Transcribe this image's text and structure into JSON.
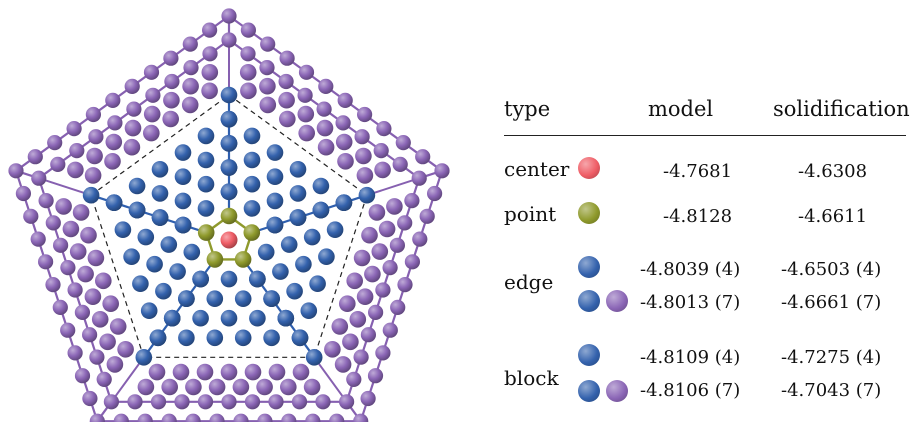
{
  "colors": {
    "center": "#ef5d66",
    "point": "#8f9a2c",
    "edge": "#3462ad",
    "outer": "#8b66b6",
    "pentagon_line_outer": "#8660b0",
    "pentagon_line_inner": "#2f5fae",
    "dashed": "#222222"
  },
  "table": {
    "headers": {
      "type": "type",
      "model": "model",
      "solidification": "solidification"
    },
    "rows": [
      {
        "type": "center",
        "balls": [
          "center"
        ],
        "model": "-4.7681",
        "solidification": "-4.6308"
      },
      {
        "type": "point",
        "balls": [
          "point"
        ],
        "model": "-4.8128",
        "solidification": "-4.6611"
      },
      {
        "type": "edge",
        "sub": [
          {
            "balls": [
              "edge"
            ],
            "model": "-4.8039 (4)",
            "solidification": "-4.6503 (4)"
          },
          {
            "balls": [
              "edge",
              "outer"
            ],
            "model": "-4.8013 (7)",
            "solidification": "-4.6661 (7)"
          }
        ]
      },
      {
        "type": "block",
        "sub": [
          {
            "balls": [
              "edge"
            ],
            "model": "-4.8109 (4)",
            "solidification": "-4.7275 (4)"
          },
          {
            "balls": [
              "edge",
              "outer"
            ],
            "model": "-4.8106 (7)",
            "solidification": "-4.7043 (7)"
          }
        ]
      }
    ]
  }
}
